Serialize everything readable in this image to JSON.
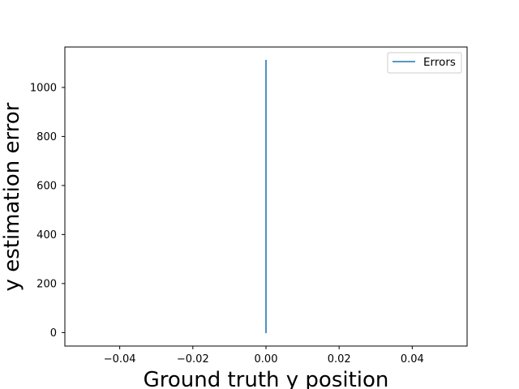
{
  "chart_data": {
    "type": "line",
    "title": "",
    "xlabel": "Ground truth y position",
    "ylabel": "y estimation error",
    "xlim": [
      -0.055,
      0.055
    ],
    "ylim": [
      -55,
      1165
    ],
    "x_ticks": [
      -0.04,
      -0.02,
      0.0,
      0.02,
      0.04
    ],
    "x_tick_labels": [
      "−0.04",
      "−0.02",
      "0.00",
      "0.02",
      "0.04"
    ],
    "y_ticks": [
      0,
      200,
      400,
      600,
      800,
      1000
    ],
    "y_tick_labels": [
      "0",
      "200",
      "400",
      "600",
      "800",
      "1000"
    ],
    "grid": false,
    "legend": {
      "position": "upper-right"
    },
    "series": [
      {
        "name": "Errors",
        "color": "#1f77b4",
        "x": [
          0.0,
          0.0
        ],
        "y": [
          0,
          1110
        ]
      }
    ]
  }
}
